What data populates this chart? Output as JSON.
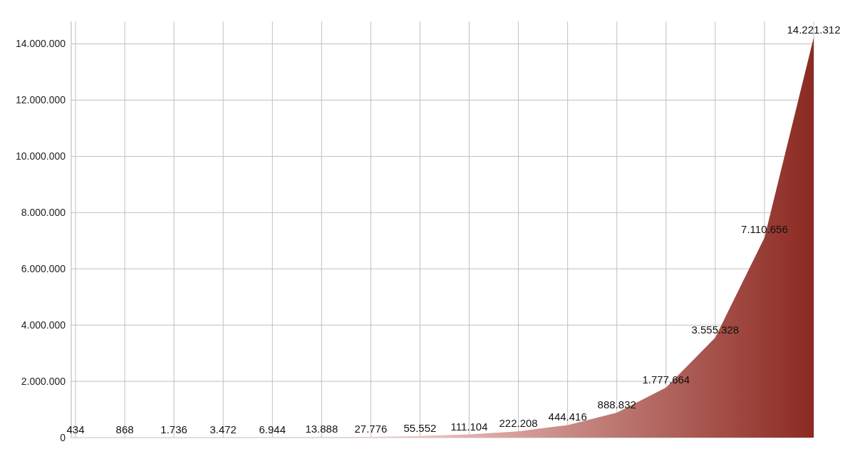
{
  "chart_data": {
    "type": "area",
    "categories": [
      null,
      null,
      null,
      null,
      null,
      null,
      null,
      null,
      null,
      null,
      null,
      null,
      null,
      null,
      null,
      null
    ],
    "series": [
      {
        "color": "#8b2a22",
        "values": [
          434,
          868,
          1736,
          3472,
          6944,
          13888,
          27776,
          55552,
          111104,
          222208,
          444416,
          888832,
          1777664,
          3555328,
          7110656,
          14221312
        ]
      }
    ],
    "ylim": [
      0,
      14800000
    ],
    "yticks": [
      0,
      {
        "value": 2000000,
        "label": "2.000.000"
      },
      {
        "value": 4000000,
        "label": "4.000.000"
      },
      {
        "value": 6000000,
        "label": "6.000.000"
      },
      {
        "value": 8000000,
        "label": "8.000.000"
      },
      {
        "value": 10000000,
        "label": "10.000.000"
      },
      {
        "value": 12000000,
        "label": "12.000.000"
      },
      {
        "value": 14000000,
        "label": "14.000.000"
      }
    ],
    "value_labels": [
      "434",
      "868",
      "1.736",
      "3.472",
      "6.944",
      "13.888",
      "27.776",
      "55.552",
      "111.104",
      "222.208",
      "444.416",
      "888.832",
      "1.777.664",
      "3.555.328",
      "7.110.656",
      "14.221.312"
    ],
    "grid": true
  }
}
